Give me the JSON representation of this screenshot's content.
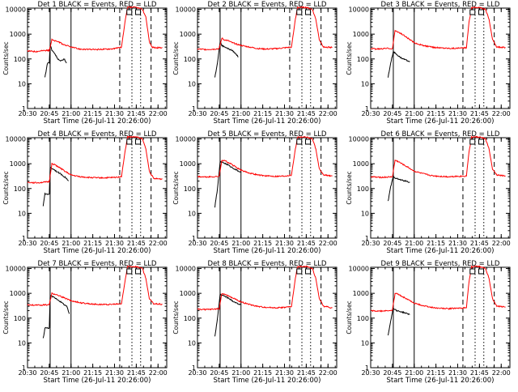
{
  "chart_data": {
    "type": "line",
    "layout": "3x3 grid",
    "yscale": "log",
    "ylim": [
      1,
      10000
    ],
    "ylabel": "Counts/sec",
    "xlabel": "Start Time (26-Jul-11 20:26:00)",
    "xtick_labels": [
      "20:30",
      "20:45",
      "21:00",
      "21:15",
      "21:30",
      "21:45",
      "22:00"
    ],
    "ytick_labels": [
      "1",
      "10",
      "100",
      "1000",
      "10000"
    ],
    "colors": {
      "black_series": "#000000",
      "red_series": "#ff0000"
    },
    "panels": [
      {
        "title": "Det 1  BLACK = Events, RED = LLD",
        "black": [
          [
            20.7,
            18
          ],
          [
            20.73,
            70
          ],
          [
            20.75,
            70
          ],
          [
            20.76,
            400
          ],
          [
            20.78,
            220
          ],
          [
            20.8,
            190
          ],
          [
            20.82,
            150
          ],
          [
            20.85,
            100
          ],
          [
            20.88,
            80
          ],
          [
            20.92,
            100
          ],
          [
            20.95,
            70
          ]
        ],
        "red": [
          [
            20.5,
            210
          ],
          [
            20.6,
            200
          ],
          [
            20.7,
            220
          ],
          [
            20.75,
            220
          ],
          [
            20.78,
            600
          ],
          [
            20.8,
            550
          ],
          [
            20.85,
            500
          ],
          [
            20.9,
            400
          ],
          [
            21.0,
            300
          ],
          [
            21.1,
            250
          ],
          [
            21.2,
            240
          ],
          [
            21.3,
            240
          ],
          [
            21.4,
            250
          ],
          [
            21.5,
            260
          ],
          [
            21.58,
            300
          ],
          [
            21.62,
            3000
          ],
          [
            21.65,
            12000
          ],
          [
            21.75,
            12000
          ],
          [
            21.82,
            10000
          ],
          [
            21.86,
            5000
          ],
          [
            21.9,
            500
          ],
          [
            21.93,
            300
          ],
          [
            21.98,
            280
          ],
          [
            22.05,
            290
          ]
        ]
      },
      {
        "title": "Det 2  BLACK = Events, RED = LLD",
        "black": [
          [
            20.7,
            18
          ],
          [
            20.73,
            70
          ],
          [
            20.76,
            500
          ],
          [
            20.78,
            350
          ],
          [
            20.82,
            300
          ],
          [
            20.86,
            250
          ],
          [
            20.9,
            220
          ],
          [
            20.94,
            160
          ],
          [
            20.97,
            120
          ]
        ],
        "red": [
          [
            20.5,
            250
          ],
          [
            20.6,
            240
          ],
          [
            20.7,
            250
          ],
          [
            20.75,
            260
          ],
          [
            20.78,
            700
          ],
          [
            20.8,
            600
          ],
          [
            20.85,
            550
          ],
          [
            20.9,
            450
          ],
          [
            21.0,
            350
          ],
          [
            21.1,
            300
          ],
          [
            21.2,
            260
          ],
          [
            21.3,
            250
          ],
          [
            21.4,
            260
          ],
          [
            21.5,
            280
          ],
          [
            21.58,
            300
          ],
          [
            21.62,
            3000
          ],
          [
            21.65,
            12000
          ],
          [
            21.75,
            12000
          ],
          [
            21.82,
            10000
          ],
          [
            21.86,
            4000
          ],
          [
            21.9,
            600
          ],
          [
            21.95,
            300
          ],
          [
            22.05,
            290
          ]
        ]
      },
      {
        "title": "Det 3  BLACK = Events, RED = LLD",
        "black": [
          [
            20.7,
            18
          ],
          [
            20.73,
            70
          ],
          [
            20.76,
            200
          ],
          [
            20.8,
            150
          ],
          [
            20.85,
            110
          ],
          [
            20.9,
            90
          ],
          [
            20.95,
            80
          ]
        ],
        "red": [
          [
            20.5,
            260
          ],
          [
            20.6,
            250
          ],
          [
            20.7,
            270
          ],
          [
            20.75,
            260
          ],
          [
            20.78,
            1400
          ],
          [
            20.82,
            1200
          ],
          [
            20.88,
            900
          ],
          [
            20.95,
            600
          ],
          [
            21.0,
            450
          ],
          [
            21.1,
            350
          ],
          [
            21.2,
            300
          ],
          [
            21.3,
            280
          ],
          [
            21.4,
            270
          ],
          [
            21.5,
            270
          ],
          [
            21.6,
            280
          ],
          [
            21.63,
            3000
          ],
          [
            21.66,
            12000
          ],
          [
            21.75,
            12000
          ],
          [
            21.82,
            10000
          ],
          [
            21.86,
            4000
          ],
          [
            21.9,
            600
          ],
          [
            21.95,
            300
          ],
          [
            22.05,
            290
          ]
        ]
      },
      {
        "title": "Det 4  BLACK = Events, RED = LLD",
        "black": [
          [
            20.68,
            20
          ],
          [
            20.7,
            60
          ],
          [
            20.75,
            60
          ],
          [
            20.76,
            700
          ],
          [
            20.8,
            600
          ],
          [
            20.85,
            450
          ],
          [
            20.9,
            350
          ],
          [
            20.95,
            250
          ],
          [
            20.97,
            200
          ]
        ],
        "red": [
          [
            20.5,
            180
          ],
          [
            20.6,
            170
          ],
          [
            20.7,
            180
          ],
          [
            20.75,
            190
          ],
          [
            20.78,
            1000
          ],
          [
            20.82,
            900
          ],
          [
            20.88,
            650
          ],
          [
            20.95,
            450
          ],
          [
            21.0,
            350
          ],
          [
            21.1,
            300
          ],
          [
            21.2,
            280
          ],
          [
            21.3,
            270
          ],
          [
            21.4,
            270
          ],
          [
            21.5,
            280
          ],
          [
            21.58,
            300
          ],
          [
            21.62,
            3000
          ],
          [
            21.65,
            12000
          ],
          [
            21.75,
            12000
          ],
          [
            21.82,
            10000
          ],
          [
            21.86,
            4000
          ],
          [
            21.9,
            500
          ],
          [
            21.95,
            250
          ],
          [
            22.05,
            240
          ]
        ]
      },
      {
        "title": "Det 5  BLACK = Events, RED = LLD",
        "black": [
          [
            20.7,
            18
          ],
          [
            20.73,
            100
          ],
          [
            20.76,
            1200
          ],
          [
            20.8,
            1100
          ],
          [
            20.85,
            900
          ],
          [
            20.9,
            700
          ],
          [
            20.95,
            550
          ],
          [
            21.0,
            450
          ]
        ],
        "red": [
          [
            20.5,
            300
          ],
          [
            20.6,
            290
          ],
          [
            20.7,
            300
          ],
          [
            20.75,
            310
          ],
          [
            20.78,
            1400
          ],
          [
            20.82,
            1300
          ],
          [
            20.88,
            1000
          ],
          [
            20.95,
            700
          ],
          [
            21.0,
            550
          ],
          [
            21.1,
            420
          ],
          [
            21.2,
            350
          ],
          [
            21.3,
            320
          ],
          [
            21.4,
            310
          ],
          [
            21.5,
            320
          ],
          [
            21.58,
            350
          ],
          [
            21.62,
            3000
          ],
          [
            21.65,
            12000
          ],
          [
            21.75,
            12000
          ],
          [
            21.82,
            10000
          ],
          [
            21.86,
            4000
          ],
          [
            21.9,
            600
          ],
          [
            21.95,
            350
          ],
          [
            22.05,
            320
          ]
        ]
      },
      {
        "title": "Det 6  BLACK = Events, RED = LLD",
        "black": [
          [
            20.7,
            30
          ],
          [
            20.73,
            120
          ],
          [
            20.76,
            300
          ],
          [
            20.8,
            250
          ],
          [
            20.85,
            220
          ],
          [
            20.9,
            200
          ],
          [
            20.95,
            180
          ]
        ],
        "red": [
          [
            20.5,
            300
          ],
          [
            20.6,
            280
          ],
          [
            20.7,
            290
          ],
          [
            20.75,
            300
          ],
          [
            20.78,
            1400
          ],
          [
            20.82,
            1200
          ],
          [
            20.88,
            900
          ],
          [
            20.95,
            650
          ],
          [
            21.0,
            500
          ],
          [
            21.1,
            400
          ],
          [
            21.2,
            330
          ],
          [
            21.3,
            310
          ],
          [
            21.4,
            300
          ],
          [
            21.5,
            310
          ],
          [
            21.6,
            320
          ],
          [
            21.63,
            3000
          ],
          [
            21.66,
            12000
          ],
          [
            21.75,
            12000
          ],
          [
            21.82,
            10000
          ],
          [
            21.86,
            4000
          ],
          [
            21.9,
            600
          ],
          [
            21.95,
            350
          ],
          [
            22.05,
            320
          ]
        ]
      },
      {
        "title": "Det 7  BLACK = Events, RED = LLD",
        "black": [
          [
            20.68,
            15
          ],
          [
            20.7,
            40
          ],
          [
            20.75,
            40
          ],
          [
            20.76,
            800
          ],
          [
            20.8,
            700
          ],
          [
            20.85,
            550
          ],
          [
            20.9,
            400
          ],
          [
            20.95,
            300
          ],
          [
            20.98,
            150
          ]
        ],
        "red": [
          [
            20.5,
            350
          ],
          [
            20.6,
            330
          ],
          [
            20.7,
            340
          ],
          [
            20.75,
            350
          ],
          [
            20.78,
            1000
          ],
          [
            20.82,
            900
          ],
          [
            20.88,
            750
          ],
          [
            20.95,
            600
          ],
          [
            21.0,
            500
          ],
          [
            21.1,
            420
          ],
          [
            21.2,
            380
          ],
          [
            21.3,
            360
          ],
          [
            21.4,
            350
          ],
          [
            21.5,
            360
          ],
          [
            21.58,
            380
          ],
          [
            21.62,
            3000
          ],
          [
            21.65,
            12000
          ],
          [
            21.75,
            12000
          ],
          [
            21.82,
            10000
          ],
          [
            21.86,
            4000
          ],
          [
            21.9,
            600
          ],
          [
            21.95,
            380
          ],
          [
            22.05,
            360
          ]
        ]
      },
      {
        "title": "Det 8  BLACK = Events, RED = LLD",
        "black": [
          [
            20.7,
            18
          ],
          [
            20.73,
            100
          ],
          [
            20.76,
            900
          ],
          [
            20.8,
            800
          ],
          [
            20.85,
            650
          ],
          [
            20.9,
            500
          ],
          [
            20.95,
            400
          ],
          [
            21.0,
            350
          ]
        ],
        "red": [
          [
            20.5,
            230
          ],
          [
            20.6,
            220
          ],
          [
            20.7,
            230
          ],
          [
            20.75,
            240
          ],
          [
            20.78,
            1000
          ],
          [
            20.82,
            900
          ],
          [
            20.88,
            700
          ],
          [
            20.95,
            550
          ],
          [
            21.0,
            450
          ],
          [
            21.1,
            350
          ],
          [
            21.2,
            290
          ],
          [
            21.3,
            270
          ],
          [
            21.4,
            260
          ],
          [
            21.5,
            270
          ],
          [
            21.58,
            290
          ],
          [
            21.62,
            3000
          ],
          [
            21.65,
            12000
          ],
          [
            21.75,
            12000
          ],
          [
            21.82,
            10000
          ],
          [
            21.86,
            4000
          ],
          [
            21.9,
            600
          ],
          [
            21.95,
            300
          ],
          [
            22.05,
            260
          ]
        ]
      },
      {
        "title": "Det 9  BLACK = Events, RED = LLD",
        "black": [
          [
            20.7,
            20
          ],
          [
            20.73,
            80
          ],
          [
            20.76,
            250
          ],
          [
            20.8,
            200
          ],
          [
            20.85,
            180
          ],
          [
            20.9,
            160
          ],
          [
            20.95,
            140
          ]
        ],
        "red": [
          [
            20.5,
            200
          ],
          [
            20.6,
            190
          ],
          [
            20.7,
            200
          ],
          [
            20.75,
            210
          ],
          [
            20.78,
            1000
          ],
          [
            20.82,
            900
          ],
          [
            20.88,
            700
          ],
          [
            20.95,
            500
          ],
          [
            21.0,
            400
          ],
          [
            21.1,
            320
          ],
          [
            21.2,
            270
          ],
          [
            21.3,
            250
          ],
          [
            21.4,
            240
          ],
          [
            21.5,
            250
          ],
          [
            21.6,
            260
          ],
          [
            21.63,
            3000
          ],
          [
            21.66,
            12000
          ],
          [
            21.75,
            12000
          ],
          [
            21.82,
            10000
          ],
          [
            21.86,
            4000
          ],
          [
            21.9,
            600
          ],
          [
            21.95,
            300
          ],
          [
            22.05,
            280
          ]
        ]
      }
    ]
  }
}
